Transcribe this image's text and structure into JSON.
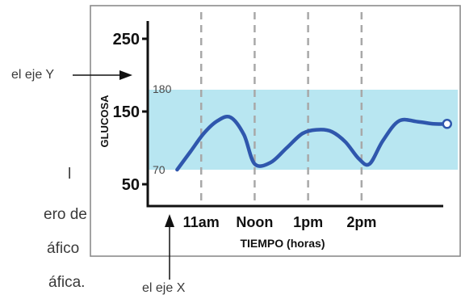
{
  "side_text_fragments": [
    "l",
    "ero de",
    "áfico",
    "áfica."
  ],
  "annotations": {
    "y_axis_callout": "el eje Y",
    "x_axis_callout": "el eje X"
  },
  "chart_data": {
    "type": "line",
    "title": "",
    "xlabel": "TIEMPO (horas)",
    "ylabel": "GLUCOSA",
    "ylim": [
      20,
      290
    ],
    "y_ticks": [
      50,
      150,
      250
    ],
    "x_ticks": [
      "11am",
      "Noon",
      "1pm",
      "2pm"
    ],
    "x_tick_positions": [
      11,
      12,
      13,
      14
    ],
    "xlim": [
      10.0,
      15.8
    ],
    "target_range": {
      "low": 70,
      "high": 180,
      "low_label": "70",
      "high_label": "180",
      "color": "#b8e6f1"
    },
    "series": [
      {
        "color": "#2f57ad",
        "x": [
          10.55,
          10.8,
          11.05,
          11.3,
          11.55,
          11.8,
          12.0,
          12.3,
          12.6,
          12.9,
          13.2,
          13.45,
          13.7,
          13.95,
          14.15,
          14.4,
          14.7,
          15.05,
          15.35,
          15.6
        ],
        "y": [
          70,
          95,
          120,
          137,
          142,
          118,
          78,
          80,
          100,
          120,
          125,
          122,
          108,
          85,
          78,
          110,
          137,
          136,
          133,
          133
        ],
        "end_marker": "open-circle"
      }
    ],
    "grid": {
      "x": "dashed",
      "y": false
    }
  }
}
